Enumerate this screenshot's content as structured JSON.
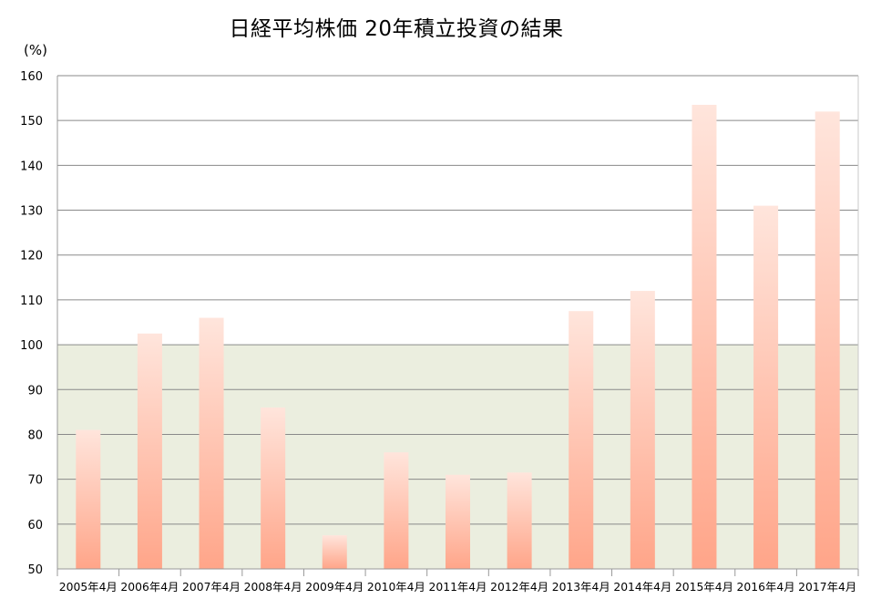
{
  "chart_data": {
    "type": "bar",
    "title": "日経平均株価  20年積立投資の結果",
    "ylabel": "(%)",
    "xlabel": "",
    "ylim": [
      50,
      160
    ],
    "yticks": [
      50,
      60,
      70,
      80,
      90,
      100,
      110,
      120,
      130,
      140,
      150,
      160
    ],
    "grid": true,
    "highlight_band": [
      50,
      100
    ],
    "categories": [
      "2005年4月",
      "2006年4月",
      "2007年4月",
      "2008年4月",
      "2009年4月",
      "2010年4月",
      "2011年4月",
      "2012年4月",
      "2013年4月",
      "2014年4月",
      "2015年4月",
      "2016年4月",
      "2017年4月"
    ],
    "values": [
      81,
      102.5,
      106,
      86,
      57.5,
      76,
      71,
      71.5,
      107.5,
      112,
      153.5,
      131,
      152
    ],
    "colors": {
      "bar_top": "#ffe5dc",
      "bar_bottom": "#ffa589",
      "band": "#ebeedf",
      "grid": "#8a8a8a",
      "axis": "#999999"
    }
  }
}
